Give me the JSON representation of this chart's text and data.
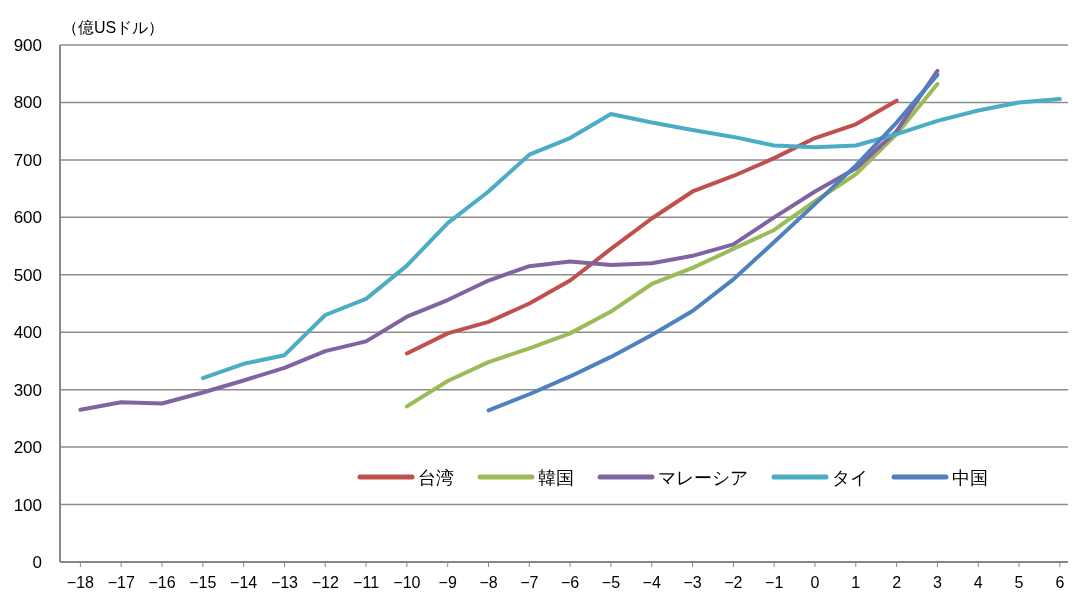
{
  "chart_data": {
    "type": "line",
    "ylabel": "（億USドル）",
    "x": [
      -18,
      -17,
      -16,
      -15,
      -14,
      -13,
      -12,
      -11,
      -10,
      -9,
      -8,
      -7,
      -6,
      -5,
      -4,
      -3,
      -2,
      -1,
      0,
      1,
      2,
      3,
      4,
      5,
      6
    ],
    "xlim": [
      -18.5,
      6.2
    ],
    "xticks": [
      -18,
      -17,
      -16,
      -15,
      -14,
      -13,
      -12,
      -11,
      -10,
      -9,
      -8,
      -7,
      -6,
      -5,
      -4,
      -3,
      -2,
      -1,
      0,
      1,
      2,
      3,
      4,
      5,
      6
    ],
    "ylim": [
      0,
      900
    ],
    "yticks": [
      0,
      100,
      200,
      300,
      400,
      500,
      600,
      700,
      800,
      900
    ],
    "grid": "y",
    "legend": "bottom right",
    "marker": "none",
    "line_style": "solid",
    "series": [
      {
        "name": "台湾",
        "color": "#c0504d",
        "values": [
          null,
          null,
          null,
          null,
          null,
          null,
          null,
          null,
          363,
          398,
          418,
          450,
          490,
          545,
          598,
          645,
          672,
          703,
          738,
          762,
          803,
          null,
          null,
          null,
          null
        ]
      },
      {
        "name": "韓国",
        "color": "#9bbb59",
        "values": [
          null,
          null,
          null,
          null,
          null,
          null,
          null,
          null,
          271,
          315,
          348,
          372,
          398,
          436,
          484,
          512,
          545,
          578,
          628,
          675,
          745,
          832,
          null,
          null,
          null
        ]
      },
      {
        "name": "マレーシア",
        "color": "#8064a2",
        "values": [
          265,
          278,
          276,
          295,
          316,
          338,
          367,
          384,
          427,
          456,
          490,
          515,
          523,
          517,
          520,
          533,
          553,
          600,
          645,
          685,
          750,
          855,
          null,
          null,
          null
        ]
      },
      {
        "name": "タイ",
        "color": "#4bacc6",
        "values": [
          null,
          null,
          null,
          320,
          345,
          360,
          430,
          458,
          516,
          590,
          645,
          709,
          738,
          780,
          765,
          752,
          740,
          725,
          722,
          725,
          745,
          768,
          786,
          800,
          806
        ]
      },
      {
        "name": "中国",
        "color": "#4f81bd",
        "values": [
          null,
          null,
          null,
          null,
          null,
          null,
          null,
          null,
          null,
          null,
          264,
          292,
          323,
          357,
          395,
          437,
          492,
          557,
          623,
          690,
          765,
          848,
          null,
          null,
          null
        ]
      }
    ]
  }
}
